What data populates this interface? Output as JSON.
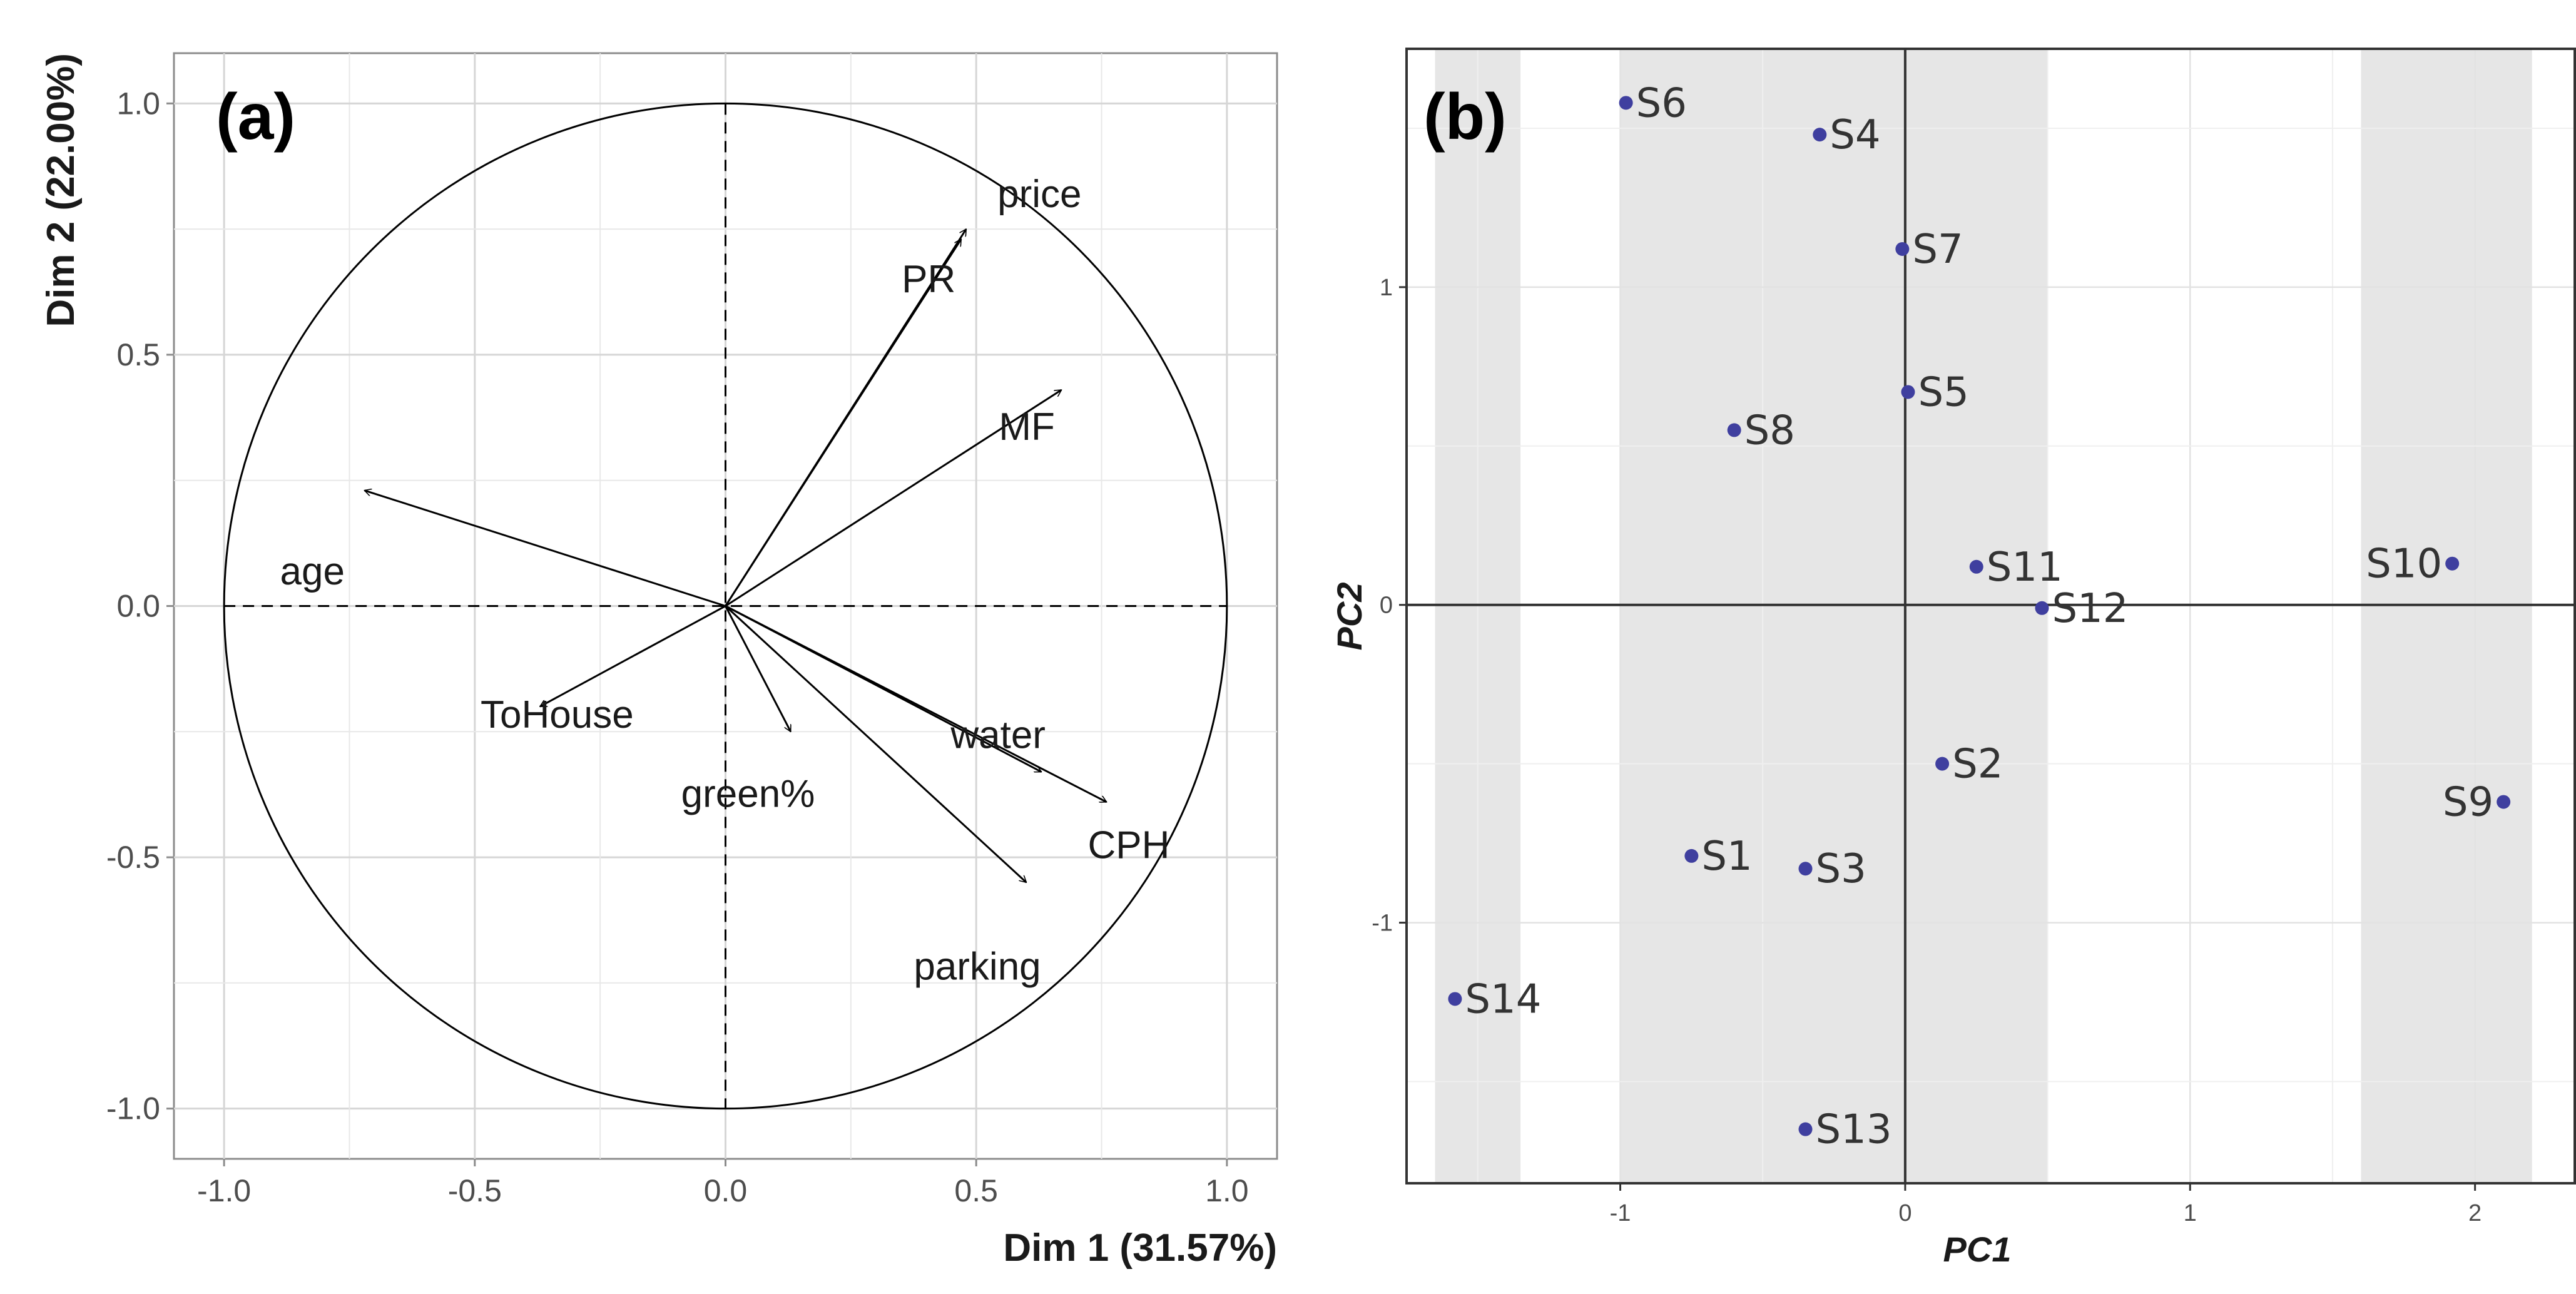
{
  "chart_data": [
    {
      "panel": "(a)",
      "type": "scatter",
      "subtype": "pca-variable-correlation-circle",
      "xlabel": "Dim 1 (31.57%)",
      "ylabel": "Dim 2 (22.00%)",
      "xlim": [
        -1.1,
        1.1
      ],
      "ylim": [
        -1.1,
        1.1
      ],
      "xticks": [
        "-1.0",
        "-0.5",
        "0.0",
        "0.5",
        "1.0"
      ],
      "yticks": [
        "-1.0",
        "-0.5",
        "0.0",
        "0.5",
        "1.0"
      ],
      "grid": true,
      "unit_circle": true,
      "variables": [
        {
          "name": "price",
          "x": 0.48,
          "y": 0.75
        },
        {
          "name": "PR",
          "x": 0.47,
          "y": 0.73
        },
        {
          "name": "MF",
          "x": 0.67,
          "y": 0.43
        },
        {
          "name": "age",
          "x": -0.72,
          "y": 0.23
        },
        {
          "name": "ToHouse",
          "x": -0.37,
          "y": -0.2
        },
        {
          "name": "green%",
          "x": 0.13,
          "y": -0.25
        },
        {
          "name": "water",
          "x": 0.63,
          "y": -0.33
        },
        {
          "name": "CPH",
          "x": 0.76,
          "y": -0.39
        },
        {
          "name": "parking",
          "x": 0.6,
          "y": -0.55
        }
      ]
    },
    {
      "panel": "(b)",
      "type": "scatter",
      "xlabel": "PC1",
      "ylabel": "PC2",
      "xlim": [
        -1.75,
        2.35
      ],
      "ylim": [
        -1.82,
        1.75
      ],
      "xticks": [
        -1,
        0,
        1,
        2
      ],
      "yticks": [
        -1,
        0,
        1
      ],
      "grid": true,
      "shaded_x_bands": [
        [
          -1.65,
          -1.35
        ],
        [
          -1.0,
          0.5
        ],
        [
          1.6,
          2.2
        ]
      ],
      "colors": {
        "points": "#3f3f9f",
        "bands": "#e6e6e6"
      },
      "points": [
        {
          "name": "S6",
          "x": -0.98,
          "y": 1.58
        },
        {
          "name": "S4",
          "x": -0.3,
          "y": 1.48
        },
        {
          "name": "S7",
          "x": -0.01,
          "y": 1.12
        },
        {
          "name": "S5",
          "x": 0.01,
          "y": 0.67
        },
        {
          "name": "S8",
          "x": -0.6,
          "y": 0.55
        },
        {
          "name": "S11",
          "x": 0.25,
          "y": 0.12
        },
        {
          "name": "S12",
          "x": 0.48,
          "y": -0.01
        },
        {
          "name": "S10",
          "x": 1.92,
          "y": 0.13
        },
        {
          "name": "S2",
          "x": 0.13,
          "y": -0.5
        },
        {
          "name": "S9",
          "x": 2.1,
          "y": -0.62
        },
        {
          "name": "S1",
          "x": -0.75,
          "y": -0.79
        },
        {
          "name": "S3",
          "x": -0.35,
          "y": -0.83
        },
        {
          "name": "S14",
          "x": -1.58,
          "y": -1.24
        },
        {
          "name": "S13",
          "x": -0.35,
          "y": -1.65
        }
      ]
    }
  ]
}
